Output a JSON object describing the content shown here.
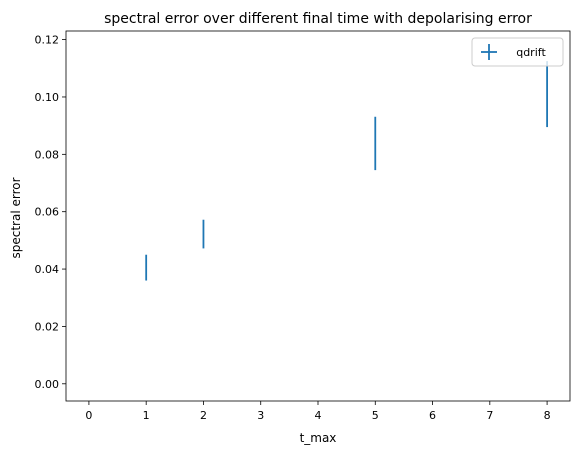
{
  "chart_data": {
    "type": "errorbar",
    "title": "spectral error over different final time with depolarising error",
    "xlabel": "t_max",
    "ylabel": "spectral error",
    "xlim": [
      -0.4,
      8.4
    ],
    "ylim": [
      -0.006,
      0.123
    ],
    "xticks": [
      0,
      1,
      2,
      3,
      4,
      5,
      6,
      7,
      8
    ],
    "xtick_labels": [
      "0",
      "1",
      "2",
      "3",
      "4",
      "5",
      "6",
      "7",
      "8"
    ],
    "yticks": [
      0.0,
      0.02,
      0.04,
      0.06,
      0.08,
      0.1,
      0.12
    ],
    "ytick_labels": [
      "0.00",
      "0.02",
      "0.04",
      "0.06",
      "0.08",
      "0.10",
      "0.12"
    ],
    "grid": false,
    "legend_position": "top-right",
    "series": [
      {
        "name": "qdrift",
        "color": "#1f77b4",
        "x": [
          1,
          2,
          5,
          8
        ],
        "y": [
          0.0405,
          0.0522,
          0.0838,
          0.101
        ],
        "yerr_low": [
          0.0045,
          0.005,
          0.0093,
          0.0115
        ],
        "yerr_high": [
          0.0045,
          0.005,
          0.0093,
          0.0115
        ]
      }
    ]
  }
}
